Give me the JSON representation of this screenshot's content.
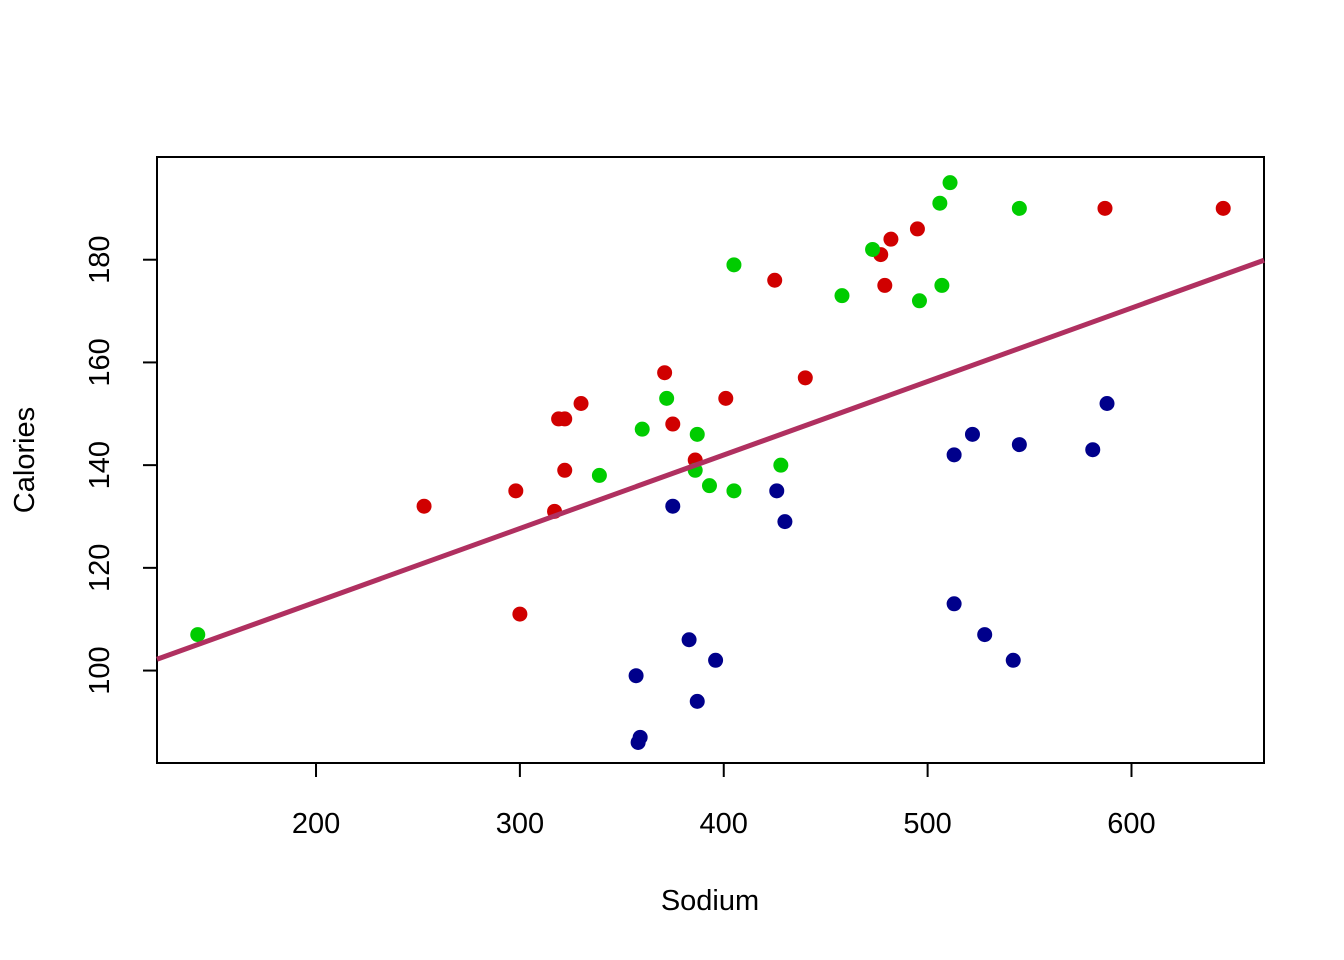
{
  "chart_data": {
    "type": "scatter",
    "title": "",
    "xlabel": "Sodium",
    "ylabel": "Calories",
    "xlim": [
      122,
      665
    ],
    "ylim": [
      82,
      200
    ],
    "x_ticks": [
      200,
      300,
      400,
      500,
      600
    ],
    "x_tick_labels": [
      "200",
      "300",
      "400",
      "500",
      "600"
    ],
    "y_ticks": [
      100,
      120,
      140,
      160,
      180
    ],
    "y_tick_labels": [
      "100",
      "120",
      "140",
      "160",
      "180"
    ],
    "grid": false,
    "legend": "none",
    "series": [
      {
        "color": "#d00000",
        "points": [
          [
            253,
            132
          ],
          [
            298,
            135
          ],
          [
            300,
            111
          ],
          [
            317,
            131
          ],
          [
            319,
            149
          ],
          [
            322,
            149
          ],
          [
            322,
            139
          ],
          [
            330,
            152
          ],
          [
            371,
            158
          ],
          [
            375,
            148
          ],
          [
            386,
            141
          ],
          [
            401,
            153
          ],
          [
            425,
            176
          ],
          [
            440,
            157
          ],
          [
            477,
            181
          ],
          [
            479,
            175
          ],
          [
            482,
            184
          ],
          [
            495,
            186
          ],
          [
            587,
            190
          ],
          [
            645,
            190
          ]
        ]
      },
      {
        "color": "#00cc00",
        "points": [
          [
            142,
            107
          ],
          [
            339,
            138
          ],
          [
            360,
            147
          ],
          [
            372,
            153
          ],
          [
            386,
            139
          ],
          [
            387,
            146
          ],
          [
            393,
            136
          ],
          [
            405,
            135
          ],
          [
            405,
            179
          ],
          [
            428,
            140
          ],
          [
            458,
            173
          ],
          [
            473,
            182
          ],
          [
            496,
            172
          ],
          [
            506,
            191
          ],
          [
            507,
            175
          ],
          [
            511,
            195
          ],
          [
            545,
            190
          ]
        ]
      },
      {
        "color": "#00008b",
        "points": [
          [
            357,
            99
          ],
          [
            358,
            86
          ],
          [
            359,
            87
          ],
          [
            375,
            132
          ],
          [
            383,
            106
          ],
          [
            387,
            94
          ],
          [
            396,
            102
          ],
          [
            426,
            135
          ],
          [
            430,
            129
          ],
          [
            513,
            142
          ],
          [
            513,
            113
          ],
          [
            522,
            146
          ],
          [
            528,
            107
          ],
          [
            542,
            102
          ],
          [
            545,
            144
          ],
          [
            581,
            143
          ],
          [
            588,
            152
          ]
        ]
      }
    ],
    "regression_line": {
      "color": "#b03060",
      "x": [
        122,
        665
      ],
      "y": [
        102.2,
        179.9
      ]
    }
  }
}
